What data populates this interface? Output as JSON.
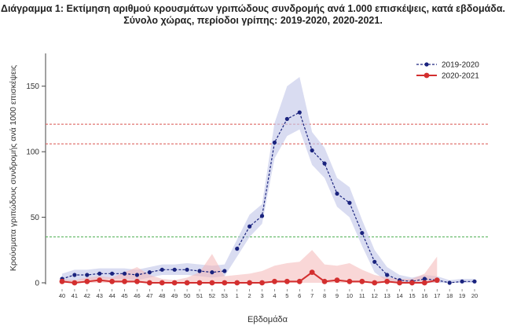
{
  "chart_data": {
    "type": "line",
    "title": "Διάγραμμα 1: Εκτίμηση αριθμού κρουσμάτων γριπώδους συνδρομής ανά 1.000 επισκέψεις, κατά εβδομάδα.",
    "subtitle": "Σύνολο χώρας, περίοδοι γρίπης:  2019-2020, 2020-2021.",
    "xlabel": "Εβδομάδα",
    "ylabel": "Κρούσματα γριπώδους συνδρομής ανά 1000 επισκέψεις",
    "ylim": [
      0,
      175
    ],
    "yticks": [
      0,
      50,
      100,
      150
    ],
    "categories": [
      "40",
      "41",
      "42",
      "43",
      "44",
      "45",
      "46",
      "47",
      "48",
      "49",
      "50",
      "51",
      "52",
      "53",
      "1",
      "2",
      "3",
      "4",
      "5",
      "6",
      "7",
      "8",
      "9",
      "10",
      "11",
      "12",
      "13",
      "14",
      "15",
      "16",
      "17",
      "18",
      "19",
      "20"
    ],
    "legend_position": "top-right",
    "grid": false,
    "thresholds": [
      {
        "value": 121,
        "color": "#d9534f",
        "style": "dashed"
      },
      {
        "value": 106,
        "color": "#d9534f",
        "style": "dashed"
      },
      {
        "value": 35,
        "color": "#4caf50",
        "style": "dashed"
      }
    ],
    "series": [
      {
        "name": "2019-2020",
        "color": "#1a237e",
        "band_color": "#c5cae9",
        "style": "dashed-dot",
        "values": [
          3,
          6,
          6,
          7,
          7,
          7,
          6,
          8,
          10,
          10,
          10,
          9,
          8,
          9,
          null,
          null,
          null,
          null,
          null,
          null,
          null,
          null,
          null,
          null,
          null,
          null,
          null,
          null,
          null,
          null,
          null,
          null,
          null,
          null
        ],
        "values_part2": [
          null,
          null,
          null,
          null,
          null,
          null,
          null,
          null,
          null,
          null,
          null,
          null,
          null,
          null,
          26,
          43,
          51,
          107,
          125,
          130,
          101,
          91,
          68,
          61,
          38,
          16,
          6,
          2,
          1,
          3,
          2,
          0,
          1,
          1
        ],
        "band_lower": [
          0,
          2,
          2,
          3,
          3,
          3,
          2,
          4,
          6,
          6,
          6,
          5,
          4,
          5,
          20,
          35,
          45,
          95,
          112,
          117,
          90,
          80,
          58,
          50,
          28,
          8,
          1,
          0,
          0,
          0,
          0,
          0,
          0,
          0
        ],
        "band_upper": [
          7,
          10,
          10,
          11,
          11,
          11,
          10,
          12,
          14,
          14,
          15,
          14,
          13,
          14,
          33,
          52,
          60,
          122,
          150,
          157,
          115,
          103,
          80,
          73,
          48,
          25,
          12,
          6,
          4,
          6,
          5,
          2,
          3,
          3
        ]
      },
      {
        "name": "2020-2021",
        "color": "#d32f2f",
        "band_color": "#f4b6b6",
        "style": "solid",
        "values": [
          1,
          0,
          1,
          2,
          1,
          1,
          1,
          0,
          0,
          0,
          0,
          0,
          0,
          0,
          0,
          0,
          0,
          1,
          1,
          1,
          8,
          1,
          2,
          1,
          1,
          0,
          1,
          0,
          0,
          0,
          2,
          null,
          null,
          null
        ],
        "band_lower": [
          0,
          0,
          0,
          0,
          0,
          0,
          0,
          0,
          0,
          0,
          0,
          0,
          0,
          0,
          0,
          0,
          0,
          0,
          0,
          0,
          0,
          0,
          0,
          0,
          0,
          0,
          0,
          0,
          0,
          0,
          0,
          null,
          null,
          null
        ],
        "band_upper": [
          3,
          2,
          4,
          5,
          4,
          8,
          12,
          6,
          3,
          2,
          4,
          8,
          22,
          5,
          6,
          7,
          9,
          13,
          15,
          16,
          25,
          14,
          13,
          15,
          10,
          6,
          4,
          3,
          3,
          7,
          20,
          null,
          null,
          null
        ]
      }
    ]
  }
}
